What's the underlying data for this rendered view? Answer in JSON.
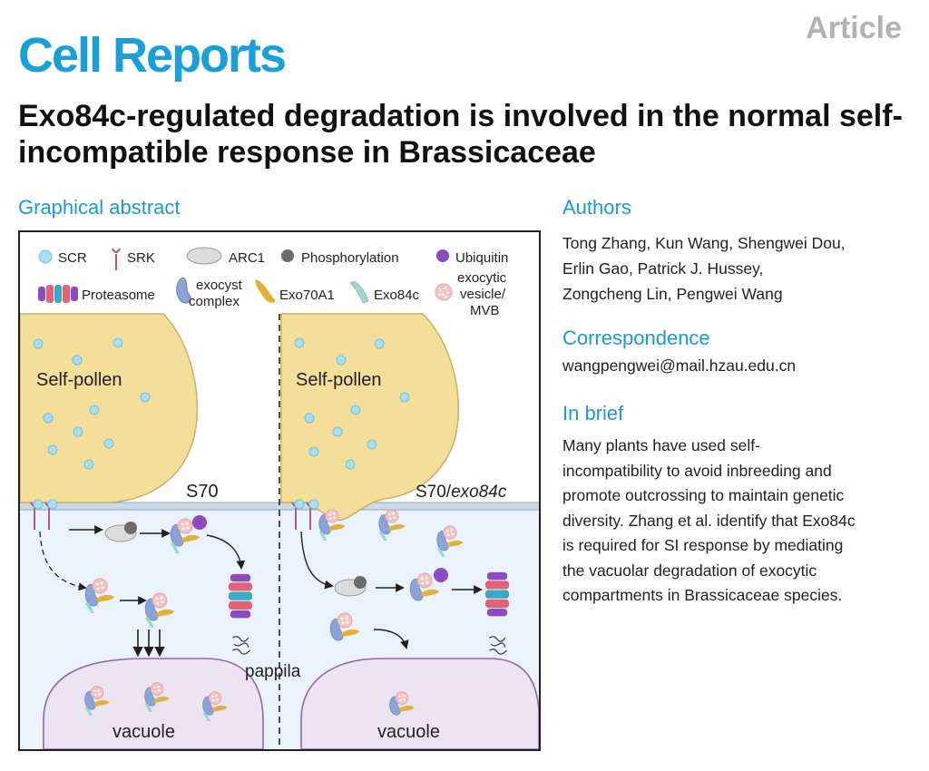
{
  "header": {
    "journal": "Cell Reports",
    "article_type": "Article"
  },
  "title": "Exo84c-regulated degradation is involved in the normal self-incompatible response in Brassicaceae",
  "graphical_abstract": {
    "heading": "Graphical abstract",
    "legend": {
      "scr": "SCR",
      "srk": "SRK",
      "arc1": "ARC1",
      "phosphorylation": "Phosphorylation",
      "ubiquitin": "Ubiquitin",
      "proteasome": "Proteasome",
      "exocyst_line1": "exocyst",
      "exocyst_line2": "complex",
      "exo70a1": "Exo70A1",
      "exo84c": "Exo84c",
      "vesicle_line1": "exocytic",
      "vesicle_line2": "vesicle/",
      "vesicle_line3": "MVB"
    },
    "left_pollen": "Self-pollen",
    "right_pollen": "Self-pollen",
    "left_genotype": "S70",
    "right_genotype_prefix": "S70/",
    "right_genotype_italic": "exo84c",
    "papilla": "pappila",
    "left_vacuole": "vacuole",
    "right_vacuole": "vacuole"
  },
  "authors": {
    "heading": "Authors",
    "lines": [
      "Tong Zhang, Kun Wang, Shengwei Dou,",
      "Erlin Gao, Patrick J. Hussey,",
      "Zongcheng Lin, Pengwei Wang"
    ]
  },
  "correspondence": {
    "heading": "Correspondence",
    "email": "wangpengwei@mail.hzau.edu.cn"
  },
  "in_brief": {
    "heading": "In brief",
    "lines": [
      "Many plants have used self-",
      "incompatibility to avoid inbreeding and",
      "promote outcrossing to maintain genetic",
      "diversity. Zhang et al. identify that Exo84c",
      "is required for SI response by mediating",
      "the vacuolar degradation of exocytic",
      "compartments in Brassicaceae species."
    ]
  },
  "colors": {
    "brand": "#1aa0d8",
    "heading_blue": "#1a9ad6",
    "pollen": "#f3de9a",
    "scr": "#a8dff0",
    "cytoplasm": "#eaf3fb",
    "vacuole": "#ece3f3",
    "exocyst": "#8ba3d6",
    "exo70a1": "#e2b13c",
    "exo84c": "#9ed8cc",
    "vesicle": "#f5c2c2",
    "ubiquitin": "#8a4cc2"
  }
}
